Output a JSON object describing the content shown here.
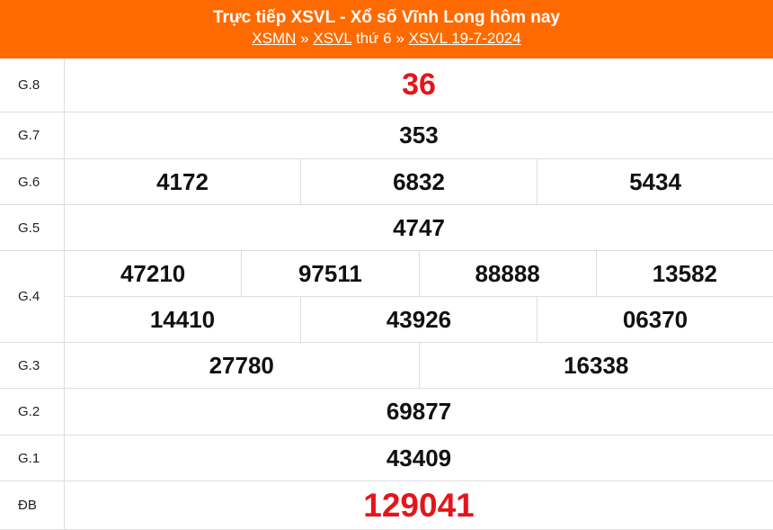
{
  "header": {
    "title": "Trực tiếp XSVL - Xổ số Vĩnh Long hôm nay",
    "breadcrumb": [
      {
        "label": "XSMN"
      },
      {
        "sep": "»"
      },
      {
        "label": "XSVL"
      },
      {
        "text": "thứ 6"
      },
      {
        "sep2": "»"
      },
      {
        "label": "XSVL 19-7-2024"
      }
    ],
    "crumb1": "XSMN",
    "sep": "»",
    "crumb2": "XSVL",
    "weekday": "thứ 6",
    "crumb3": "XSVL 19-7-2024"
  },
  "colors": {
    "header": "#ff6a00",
    "highlight": "#e5151b"
  },
  "prizes": [
    {
      "label": "G.8",
      "rows": [
        [
          "36"
        ]
      ]
    },
    {
      "label": "G.7",
      "rows": [
        [
          "353"
        ]
      ]
    },
    {
      "label": "G.6",
      "rows": [
        [
          "4172",
          "6832",
          "5434"
        ]
      ]
    },
    {
      "label": "G.5",
      "rows": [
        [
          "4747"
        ]
      ]
    },
    {
      "label": "G.4",
      "rows": [
        [
          "47210",
          "97511",
          "88888",
          "13582"
        ],
        [
          "14410",
          "43926",
          "06370"
        ]
      ]
    },
    {
      "label": "G.3",
      "rows": [
        [
          "27780",
          "16338"
        ]
      ]
    },
    {
      "label": "G.2",
      "rows": [
        [
          "69877"
        ]
      ]
    },
    {
      "label": "G.1",
      "rows": [
        [
          "43409"
        ]
      ]
    },
    {
      "label": "ĐB",
      "rows": [
        [
          "129041"
        ]
      ]
    }
  ]
}
